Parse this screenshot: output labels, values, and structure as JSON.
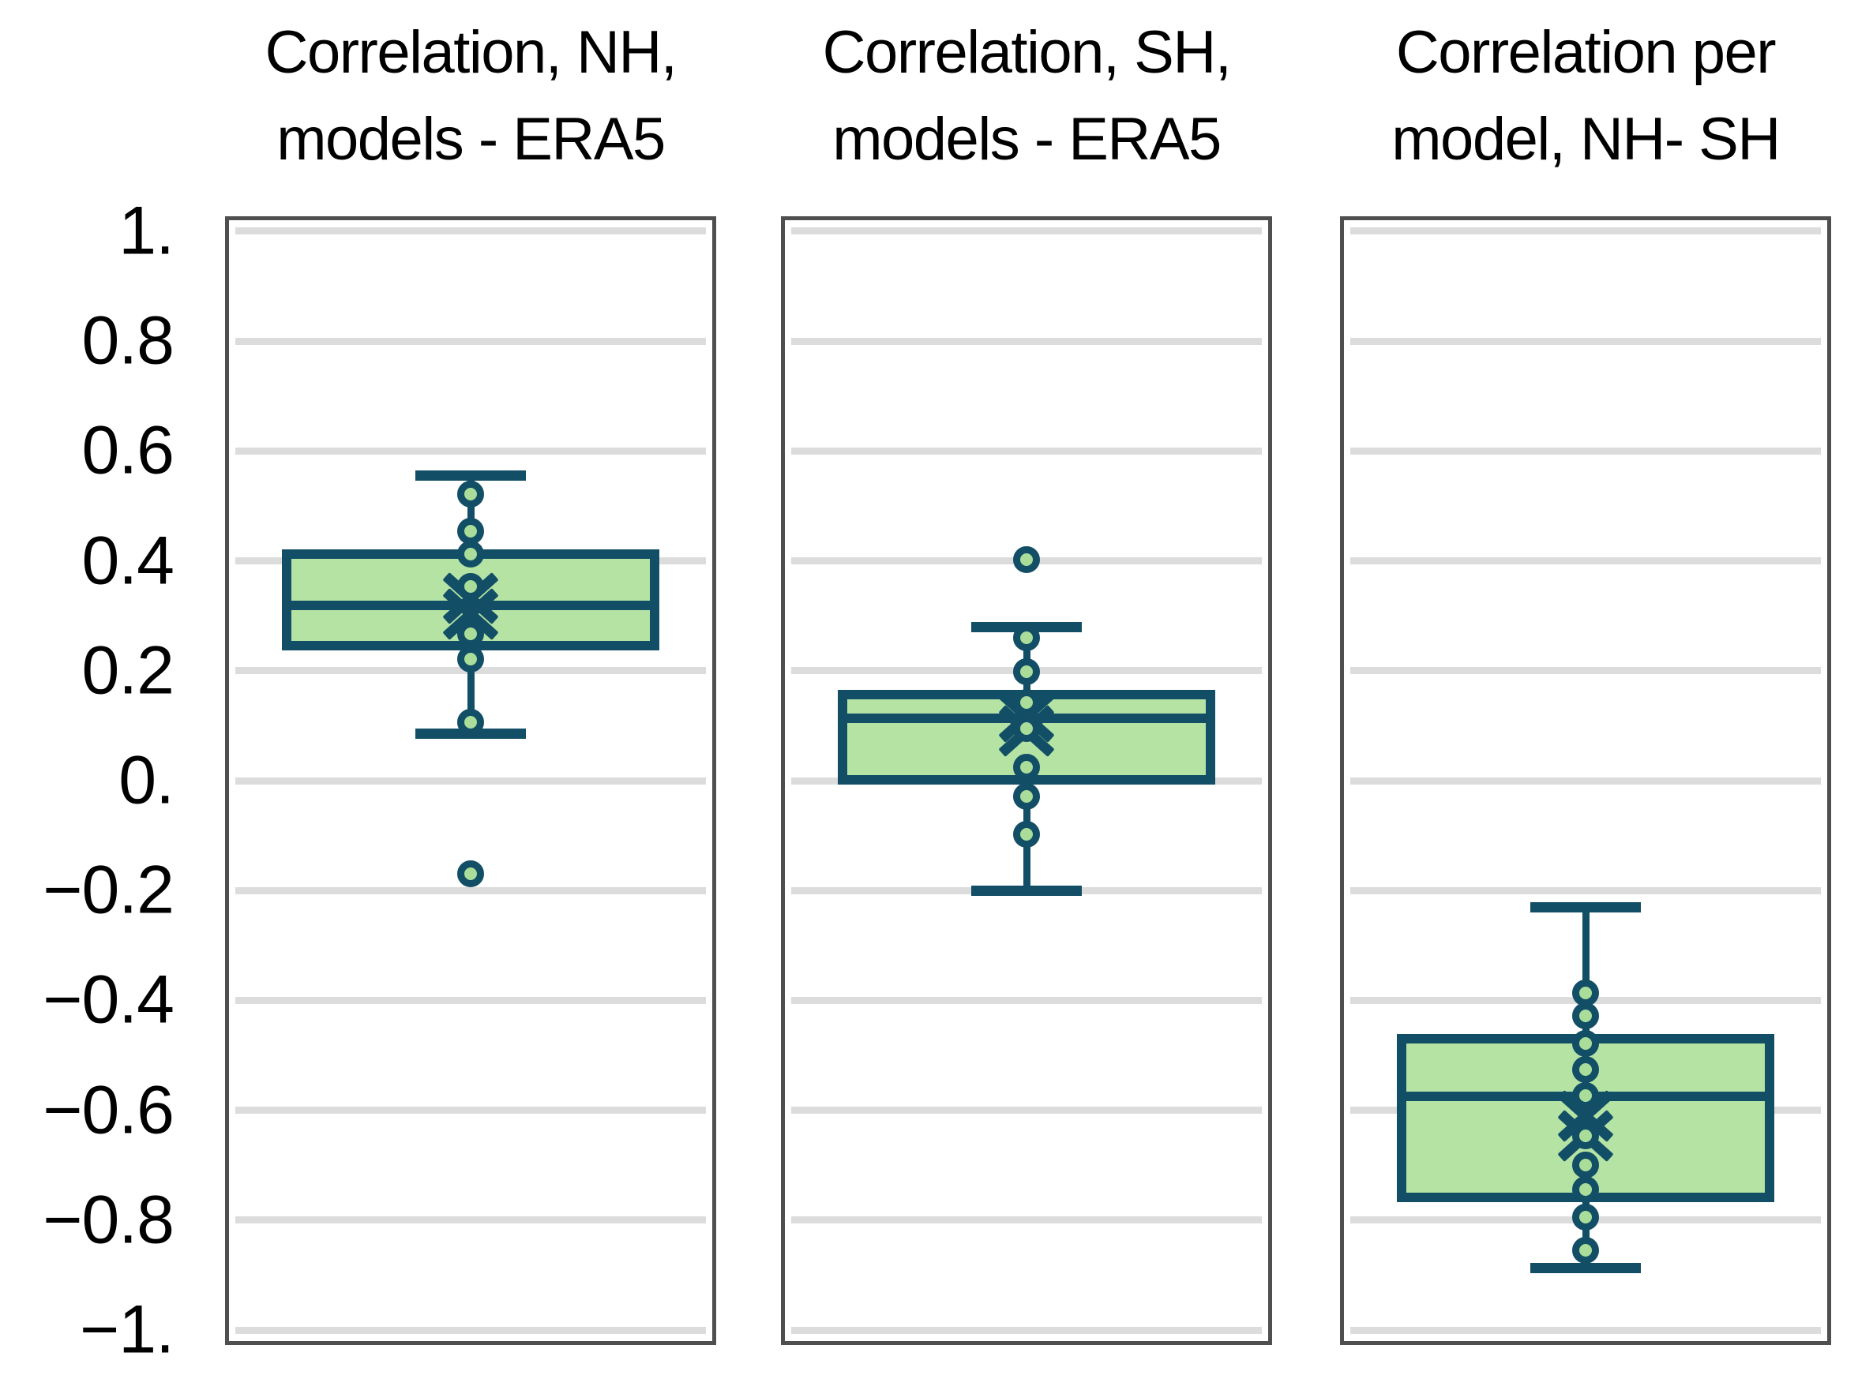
{
  "colors": {
    "stroke_teal": "#124e66",
    "box_fill_green": "#b5e3a4",
    "point_fill_green": "#a9dd99",
    "gridline_gray": "#dcdcdc",
    "frame_gray": "#4f4f4f",
    "text_black": "#000000",
    "background": "#ffffff"
  },
  "chart_data": {
    "type": "boxplot",
    "orientation": "vertical",
    "grid": true,
    "ylim": [
      -1.02,
      1.02
    ],
    "yticks": [
      {
        "v": 1.0,
        "label": "1."
      },
      {
        "v": 0.8,
        "label": "0.8"
      },
      {
        "v": 0.6,
        "label": "0.6"
      },
      {
        "v": 0.4,
        "label": "0.4"
      },
      {
        "v": 0.2,
        "label": "0.2"
      },
      {
        "v": 0.0,
        "label": "0."
      },
      {
        "v": -0.2,
        "label": "−0.2"
      },
      {
        "v": -0.4,
        "label": "−0.4"
      },
      {
        "v": -0.6,
        "label": "−0.6"
      },
      {
        "v": -0.8,
        "label": "−0.8"
      },
      {
        "v": -1.0,
        "label": "−1."
      }
    ],
    "panels": [
      {
        "title_line1": "Correlation, NH,",
        "title_line2": "models - ERA5",
        "box": {
          "q1": 0.246,
          "median": 0.319,
          "q3": 0.413,
          "whisker_low": 0.085,
          "whisker_high": 0.555,
          "mean_markers": [
            0.332,
            0.303
          ]
        },
        "points": [
          0.522,
          0.454,
          0.413,
          0.353,
          0.268,
          0.222,
          0.107
        ],
        "outliers": [
          -0.169
        ]
      },
      {
        "title_line1": "Correlation, SH,",
        "title_line2": "models - ERA5",
        "box": {
          "q1": 0.002,
          "median": 0.114,
          "q3": 0.157,
          "whisker_low": -0.2,
          "whisker_high": 0.28,
          "mean_markers": [
            0.117,
            0.09
          ]
        },
        "points": [
          0.26,
          0.199,
          0.143,
          0.095,
          0.025,
          -0.029,
          -0.097
        ],
        "outliers": [
          0.402
        ]
      },
      {
        "title_line1": "Correlation per",
        "title_line2": "model,  NH- SH",
        "box": {
          "q1": -0.758,
          "median": -0.575,
          "q3": -0.47,
          "whisker_low": -0.887,
          "whisker_high": -0.23,
          "mean_markers": [
            -0.61,
            -0.646
          ]
        },
        "points": [
          -0.386,
          -0.428,
          -0.478,
          -0.526,
          -0.573,
          -0.646,
          -0.699,
          -0.744,
          -0.794,
          -0.854
        ],
        "outliers": []
      }
    ]
  }
}
